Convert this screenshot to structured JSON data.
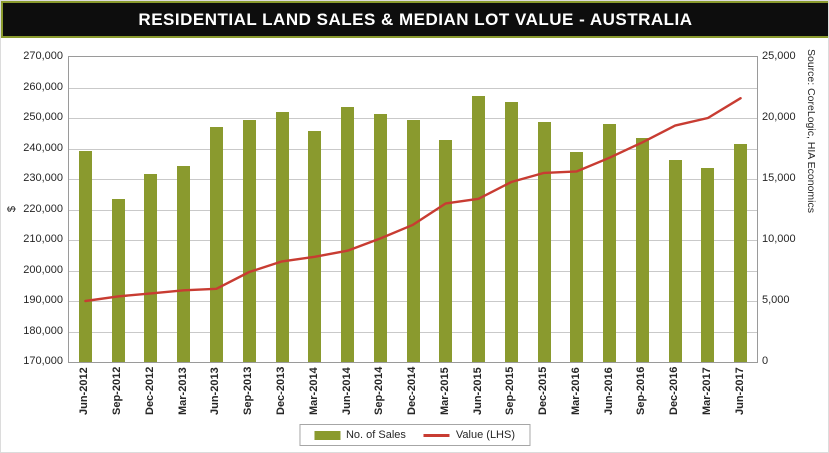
{
  "header": {
    "title": "RESIDENTIAL LAND SALES & MEDIAN LOT VALUE - AUSTRALIA"
  },
  "source_note": "Source: CoreLogic, HIA Economics",
  "colors": {
    "bar": "#8a9a2e",
    "line": "#c83c32",
    "header_bg": "#0d0d0d",
    "header_text": "#ffffff",
    "header_border": "#8a9a2e",
    "grid": "#c9c9c9",
    "plot_border": "#9a9a9a"
  },
  "legend": [
    {
      "label": "No. of Sales",
      "type": "bar"
    },
    {
      "label": "Value (LHS)",
      "type": "line"
    }
  ],
  "chart_data": {
    "type": "bar",
    "subtype": "combo_bar_line",
    "title": "RESIDENTIAL LAND SALES & MEDIAN LOT VALUE - AUSTRALIA",
    "categories": [
      "Jun-2012",
      "Sep-2012",
      "Dec-2012",
      "Mar-2013",
      "Jun-2013",
      "Sep-2013",
      "Dec-2013",
      "Mar-2014",
      "Jun-2014",
      "Sep-2014",
      "Dec-2014",
      "Mar-2015",
      "Jun-2015",
      "Sep-2015",
      "Dec-2015",
      "Mar-2016",
      "Jun-2016",
      "Sep-2016",
      "Dec-2016",
      "Mar-2017",
      "Jun-2017"
    ],
    "series": [
      {
        "name": "No. of Sales",
        "type": "bar",
        "axis": "right",
        "values": [
          17300,
          13400,
          15400,
          16100,
          19300,
          19800,
          20500,
          18900,
          20900,
          20300,
          19800,
          18200,
          21800,
          21300,
          19700,
          17200,
          19500,
          18400,
          16600,
          15900,
          17900
        ]
      },
      {
        "name": "Value (LHS)",
        "type": "line",
        "axis": "left",
        "values": [
          190000,
          191500,
          192500,
          193500,
          194000,
          199500,
          203000,
          204500,
          206500,
          210500,
          215000,
          222000,
          223500,
          229000,
          232000,
          232500,
          237000,
          242000,
          247500,
          250000,
          256500
        ]
      }
    ],
    "left_axis": {
      "label": "$",
      "min": 170000,
      "max": 270000,
      "step": 10000,
      "tick_labels": [
        "270,000",
        "260,000",
        "250,000",
        "240,000",
        "230,000",
        "220,000",
        "210,000",
        "200,000",
        "190,000",
        "180,000",
        "170,000"
      ]
    },
    "right_axis": {
      "min": 0,
      "max": 25000,
      "step": 5000,
      "tick_labels": [
        "25,000",
        "20,000",
        "15,000",
        "10,000",
        "5,000",
        "0"
      ]
    },
    "grid": true,
    "legend_position": "bottom"
  }
}
